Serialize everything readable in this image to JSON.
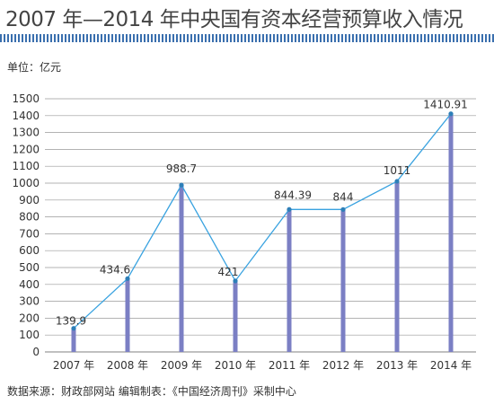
{
  "header": {
    "title": "2007 年—2014 年中央国有资本经营预算收入情况",
    "unit": "单位：亿元",
    "source": "数据来源：财政部网站    编辑制表：《中国经济周刊》采制中心"
  },
  "colors": {
    "title_rule": "#3a6fae",
    "bar": "#7b7fc4",
    "line": "#3aa3e0",
    "point": "#2e7fb8",
    "grid": "#9a9a9a"
  },
  "chart_data": {
    "type": "line",
    "categories": [
      "2007 年",
      "2008 年",
      "2009 年",
      "2010 年",
      "2011 年",
      "2012 年",
      "2013 年",
      "2014 年"
    ],
    "values": [
      139.9,
      434.6,
      988.7,
      421,
      844.39,
      844,
      1011,
      1410.91
    ],
    "data_labels": [
      "139.9",
      "434.6",
      "988.7",
      "421",
      "844.39",
      "844",
      "1011",
      "1410.91"
    ],
    "y_ticks": [
      "0",
      "100",
      "200",
      "300",
      "400",
      "500",
      "600",
      "700",
      "800",
      "900",
      "1000",
      "1100",
      "1200",
      "1300",
      "1400",
      "1500"
    ],
    "ylim": [
      0,
      1500
    ],
    "grid": true,
    "legend": "none"
  }
}
